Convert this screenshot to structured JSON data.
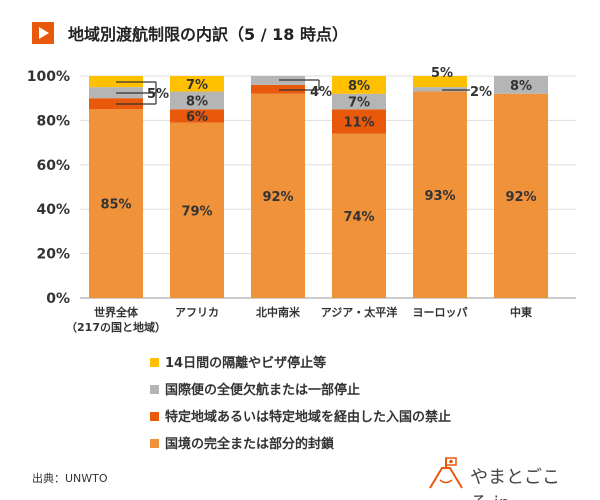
{
  "title": "地域別渡航制限の内訳（5 / 18 時点）",
  "source": "出典：UNWTO",
  "logo_text": "やまとごころ.jp",
  "chart_data": {
    "type": "bar",
    "stacked": true,
    "categories": [
      "世界全体\n（217の国と地域）",
      "アフリカ",
      "北中南米",
      "アジア・太平洋",
      "ヨーロッパ",
      "中東"
    ],
    "ylim": [
      0,
      100
    ],
    "yticks": [
      "0%",
      "20%",
      "40%",
      "60%",
      "80%",
      "100%"
    ],
    "grid": true,
    "legend_position": "bottom",
    "series": [
      {
        "name": "国境の完全または部分的封鎖",
        "color": "#f0923a",
        "values": [
          85,
          79,
          92,
          74,
          93,
          92
        ]
      },
      {
        "name": "特定地域あるいは特定地域を経由した入国の禁止",
        "color": "#e8590c",
        "values": [
          5,
          6,
          4,
          11,
          0,
          0
        ]
      },
      {
        "name": "国際便の全便欠航または一部停止",
        "color": "#b5b5b5",
        "values": [
          5,
          8,
          4,
          7,
          2,
          8
        ]
      },
      {
        "name": "14日間の隔離やビザ停止等",
        "color": "#ffc000",
        "values": [
          5,
          7,
          0,
          8,
          5,
          0
        ]
      }
    ],
    "labels": [
      [
        "85%",
        "79%",
        "92%",
        "74%",
        "93%",
        "92%"
      ],
      [
        "5%",
        "6%",
        "4%",
        "11%",
        "",
        ""
      ],
      [
        "",
        "8%",
        "",
        "7%",
        "2%",
        "8%"
      ],
      [
        "",
        "7%",
        "",
        "8%",
        "5%",
        ""
      ]
    ]
  }
}
